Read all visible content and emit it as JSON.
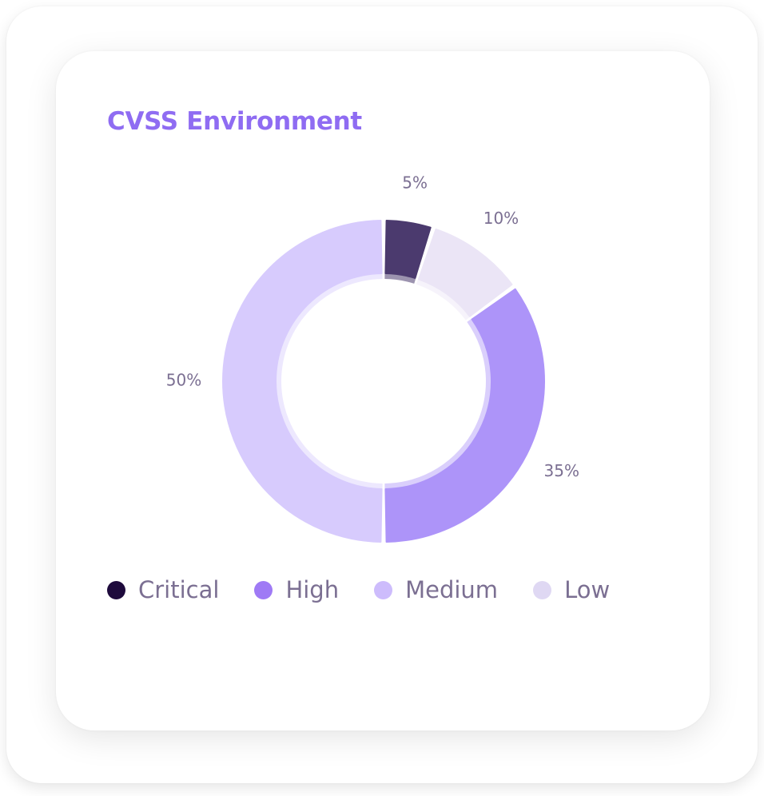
{
  "chart_data": {
    "type": "pie",
    "title": "CVSS Environment",
    "categories": [
      "Critical",
      "High",
      "Medium",
      "Low"
    ],
    "values": [
      5,
      35,
      50,
      10
    ],
    "value_labels": [
      "5%",
      "35%",
      "50%",
      "10%"
    ],
    "colors": [
      "#4b3a6e",
      "#ad94f9",
      "#d7cbfd",
      "#ebe5f6"
    ],
    "legend_colors": [
      "#1e0a3c",
      "#9f7af5",
      "#cdbcfc",
      "#dfd8f3"
    ],
    "style": "donut",
    "start_angle_deg": 0,
    "order": [
      "Critical",
      "Low",
      "High",
      "Medium"
    ],
    "legend_position": "bottom-left"
  }
}
